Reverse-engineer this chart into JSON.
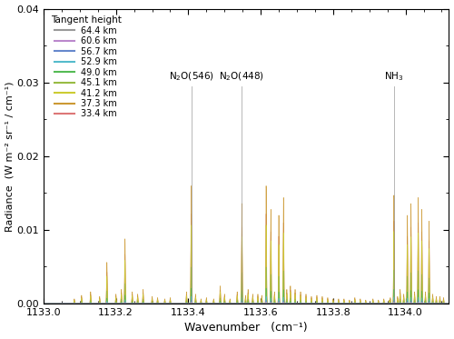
{
  "xmin": 1133.0,
  "xmax": 1134.12,
  "ymin": 0.0,
  "ymax": 0.04,
  "xlabel": "Wavenumber   (cm⁻¹)",
  "ylabel": "Radiance  (W m⁻² sr⁻¹ / cm⁻¹)",
  "legend_title": "Tangent height",
  "tangent_heights": [
    64.4,
    60.6,
    56.7,
    52.9,
    49.0,
    45.1,
    41.2,
    37.3,
    33.4
  ],
  "colors": [
    "#999999",
    "#bb88cc",
    "#6688cc",
    "#55bbcc",
    "#55bb55",
    "#99bb44",
    "#cccc33",
    "#cc9933",
    "#dd7777"
  ],
  "background_color": "#ffffff",
  "annotation_line_color": "#888888",
  "figsize": [
    5.0,
    3.73
  ],
  "dpi": 100
}
